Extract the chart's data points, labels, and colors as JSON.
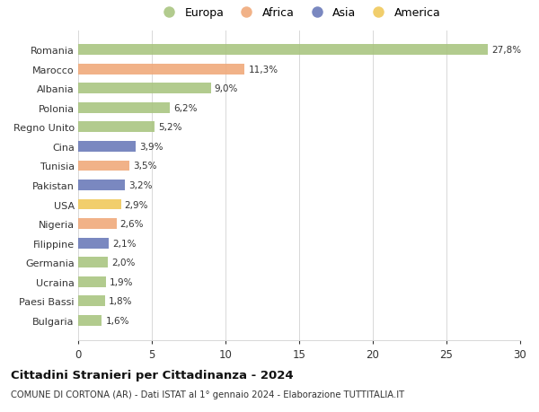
{
  "countries": [
    "Romania",
    "Marocco",
    "Albania",
    "Polonia",
    "Regno Unito",
    "Cina",
    "Tunisia",
    "Pakistan",
    "USA",
    "Nigeria",
    "Filippine",
    "Germania",
    "Ucraina",
    "Paesi Bassi",
    "Bulgaria"
  ],
  "values": [
    27.8,
    11.3,
    9.0,
    6.2,
    5.2,
    3.9,
    3.5,
    3.2,
    2.9,
    2.6,
    2.1,
    2.0,
    1.9,
    1.8,
    1.6
  ],
  "labels": [
    "27,8%",
    "11,3%",
    "9,0%",
    "6,2%",
    "5,2%",
    "3,9%",
    "3,5%",
    "3,2%",
    "2,9%",
    "2,6%",
    "2,1%",
    "2,0%",
    "1,9%",
    "1,8%",
    "1,6%"
  ],
  "continents": [
    "Europa",
    "Africa",
    "Europa",
    "Europa",
    "Europa",
    "Asia",
    "Africa",
    "Asia",
    "America",
    "Africa",
    "Asia",
    "Europa",
    "Europa",
    "Europa",
    "Europa"
  ],
  "continent_colors": {
    "Europa": "#a8c47e",
    "Africa": "#f0a878",
    "Asia": "#6878b8",
    "America": "#f0c858"
  },
  "legend_order": [
    "Europa",
    "Africa",
    "Asia",
    "America"
  ],
  "title": "Cittadini Stranieri per Cittadinanza - 2024",
  "subtitle": "COMUNE DI CORTONA (AR) - Dati ISTAT al 1° gennaio 2024 - Elaborazione TUTTITALIA.IT",
  "xlim": [
    0,
    30
  ],
  "xticks": [
    0,
    5,
    10,
    15,
    20,
    25,
    30
  ],
  "background_color": "#ffffff",
  "grid_color": "#d8d8d8"
}
